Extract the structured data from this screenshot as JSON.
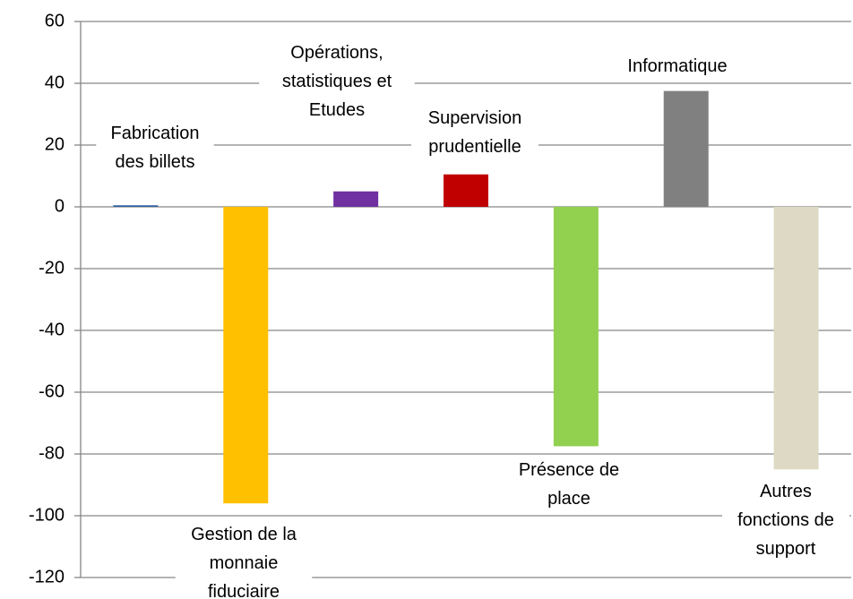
{
  "chart_data": {
    "type": "bar",
    "categories": [
      "Fabrication\ndes billets",
      "Gestion de la\nmonnaie\nfiduciaire",
      "Opérations,\nstatistiques et\nEtudes",
      "Supervision\nprudentielle",
      "Présence de\nplace",
      "Informatique",
      "Autres\nfonctions de\nsupport"
    ],
    "values": [
      0.5,
      -96,
      5,
      10.5,
      -77.5,
      37.5,
      -85
    ],
    "colors": [
      "#2e5fa3",
      "#ffc000",
      "#7030a0",
      "#c00000",
      "#92d050",
      "#808080",
      "#ddd9c4"
    ],
    "ylim": [
      -120,
      60
    ],
    "yticks": [
      -120,
      -100,
      -80,
      -60,
      -40,
      -20,
      0,
      20,
      40,
      60
    ],
    "grid": true
  }
}
